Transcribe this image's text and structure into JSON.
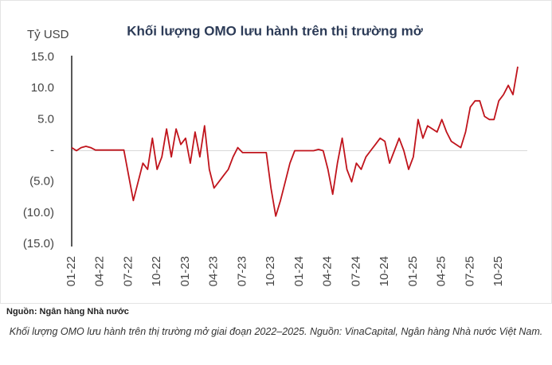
{
  "chart_data": {
    "type": "line",
    "title": "Khối lượng OMO lưu hành trên thị trường mở",
    "y_label": "Tỷ USD",
    "source": "Nguồn: Ngân hàng Nhà nước",
    "caption": "Khối lượng OMO lưu hành trên thị trường mở giai đoạn 2022–2025. Nguồn: VinaCapital, Ngân hàng Nhà nước Việt Nam.",
    "color": "#c0141c",
    "x": [
      0,
      0.5,
      1,
      1.5,
      2,
      2.5,
      3,
      3.5,
      4,
      4.5,
      5,
      5.5,
      6,
      6.5,
      7,
      7.5,
      8,
      8.5,
      9,
      9.5,
      10,
      10.5,
      11,
      11.5,
      12,
      12.5,
      13,
      13.5,
      14,
      14.5,
      15,
      15.5,
      16,
      16.5,
      17,
      17.5,
      18,
      18.5,
      19,
      19.5,
      20,
      20.5,
      21,
      21.5,
      22,
      22.5,
      23,
      23.5,
      24,
      24.5,
      25,
      25.5,
      26,
      26.5,
      27,
      27.5,
      28,
      28.5,
      29,
      29.5,
      30,
      30.5,
      31,
      31.5,
      32,
      32.5,
      33,
      33.5,
      34,
      34.5,
      35,
      35.5,
      36,
      36.5,
      37,
      37.5,
      38,
      38.5,
      39,
      39.5,
      40,
      40.5,
      41,
      41.5,
      42,
      42.5,
      43,
      43.5,
      44,
      44.5,
      45,
      45.5,
      46,
      46.5,
      47
    ],
    "values": [
      0.5,
      0,
      0.5,
      0.7,
      0.5,
      0.1,
      0.1,
      0.1,
      0.1,
      0.1,
      0.1,
      0.1,
      -4,
      -8,
      -5,
      -2,
      -3,
      2,
      -3,
      -1,
      3.5,
      -1,
      3.5,
      1,
      2,
      -2,
      3,
      -1,
      4,
      -3,
      -6,
      -5,
      -4,
      -3,
      -1,
      0.5,
      -0.3,
      -0.3,
      -0.3,
      -0.3,
      -0.3,
      -0.3,
      -6,
      -10.5,
      -8,
      -5,
      -2,
      0,
      0,
      0,
      0,
      0,
      0.2,
      0,
      -3,
      -7,
      -2,
      2,
      -3,
      -5,
      -2,
      -3,
      -1,
      0,
      1,
      2,
      1.5,
      -2,
      0,
      2,
      0,
      -3,
      -1,
      5,
      2,
      4,
      3.5,
      3,
      5,
      3,
      1.5,
      1,
      0.5,
      3,
      7,
      8,
      8,
      5.5,
      5,
      5,
      8,
      9,
      10.5,
      9,
      13.5
    ],
    "xlim": [
      0,
      47
    ],
    "xticks": [
      {
        "value": 0,
        "label": "01-22"
      },
      {
        "value": 3,
        "label": "04-22"
      },
      {
        "value": 6,
        "label": "07-22"
      },
      {
        "value": 9,
        "label": "10-22"
      },
      {
        "value": 12,
        "label": "01-23"
      },
      {
        "value": 15,
        "label": "04-23"
      },
      {
        "value": 18,
        "label": "07-23"
      },
      {
        "value": 21,
        "label": "10-23"
      },
      {
        "value": 24,
        "label": "01-24"
      },
      {
        "value": 27,
        "label": "04-24"
      },
      {
        "value": 30,
        "label": "07-24"
      },
      {
        "value": 33,
        "label": "10-24"
      },
      {
        "value": 36,
        "label": "01-25"
      },
      {
        "value": 39,
        "label": "04-25"
      },
      {
        "value": 42,
        "label": "07-25"
      },
      {
        "value": 45,
        "label": "10-25"
      }
    ],
    "ylim": [
      -15,
      15
    ],
    "yticks": [
      {
        "value": 15,
        "label": "15.0"
      },
      {
        "value": 10,
        "label": "10.0"
      },
      {
        "value": 5,
        "label": "5.0"
      },
      {
        "value": 0,
        "label": "-"
      },
      {
        "value": -5,
        "label": "(5.0)"
      },
      {
        "value": -10,
        "label": "(10.0)"
      },
      {
        "value": -15,
        "label": "(15.0)"
      }
    ],
    "zero_line": true
  }
}
